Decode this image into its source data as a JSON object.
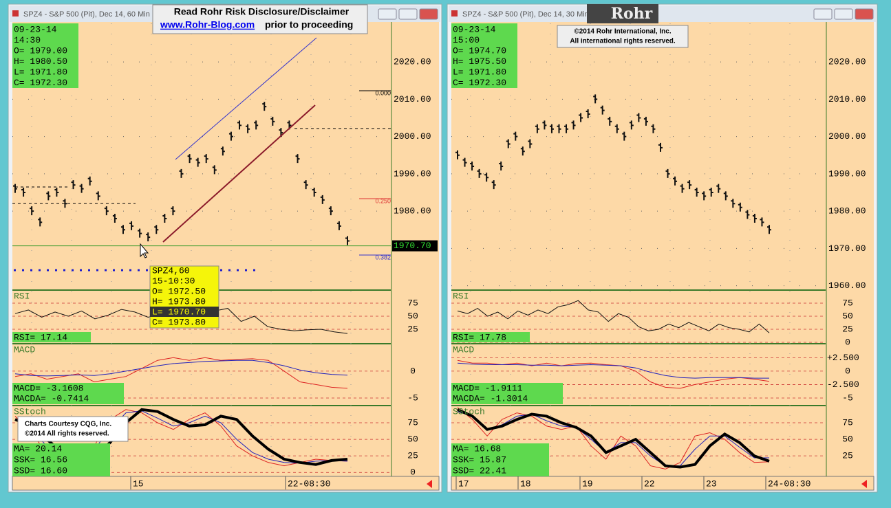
{
  "windows": [
    {
      "title": "SPZ4 - S&P 500 (Pit), Dec 14, 60 Min",
      "info": [
        "09-23-14",
        "14:30",
        "O= 1979.00",
        "H= 1980.50",
        "L= 1971.80",
        "C= 1972.30"
      ],
      "price": {
        "ylim": [
          1959.2,
          2030.7
        ],
        "yticks": [
          {
            "value": 2020,
            "label": "2020.00"
          },
          {
            "value": 2010,
            "label": "2010.00"
          },
          {
            "value": 2000,
            "label": "2000.00"
          },
          {
            "value": 1990,
            "label": "1990.00"
          },
          {
            "value": 1980,
            "label": "1980.00"
          }
        ],
        "last": {
          "value": 1970.7,
          "label": "1970.70"
        },
        "closes": [
          1986,
          1985,
          1980,
          1977,
          1984,
          1985,
          1982,
          1987,
          1986,
          1988,
          1984,
          1980,
          1978,
          1975,
          1976,
          1974,
          1973,
          1975,
          1978,
          1980,
          1990,
          1994,
          1993,
          1994,
          1991,
          1996,
          2000,
          2003,
          2002,
          2003,
          2008,
          2004,
          2001,
          2003,
          1994,
          1987,
          1985,
          1983,
          1980,
          1976,
          1972
        ]
      },
      "fib_labels": [
        "0.000",
        "0.250",
        "0.382"
      ],
      "rsi": {
        "name": "RSI",
        "readout": "RSI=   17.14",
        "ylim": [
          0,
          100
        ],
        "yticks": [
          75,
          50,
          25
        ],
        "values": [
          55,
          62,
          48,
          58,
          50,
          60,
          45,
          52,
          63,
          58,
          48,
          55,
          65,
          70,
          78,
          60,
          65,
          40,
          50,
          30,
          25,
          22,
          24,
          25,
          20,
          17
        ]
      },
      "macd": {
        "name": "MACD",
        "readout": [
          "MACD=     -3.1608",
          "MACDA=    -0.7414"
        ],
        "ylim": [
          -6.15,
          5.1
        ],
        "yticks": [
          0,
          -5
        ],
        "macd": [
          -1,
          -0.5,
          -1.5,
          -1,
          -0.5,
          -2,
          -1.5,
          -1,
          0.5,
          2,
          2.5,
          2,
          2.5,
          2,
          2.2,
          2.3,
          2,
          0,
          -2,
          -2.5,
          -3,
          -3.2
        ],
        "macda": [
          -0.5,
          -0.8,
          -0.9,
          -0.8,
          -0.7,
          -0.8,
          -0.5,
          0,
          0.5,
          1,
          1.4,
          1.6,
          1.8,
          1.9,
          2,
          2,
          1.6,
          1,
          0.2,
          -0.3,
          -0.6,
          -0.74
        ]
      },
      "stoch": {
        "name": "SStoch",
        "readout": [
          "MA=       20.14",
          "SSK=      16.56",
          "SSD=      16.60"
        ],
        "ylim": [
          -6,
          101
        ],
        "yticks": [
          75,
          50,
          25,
          0
        ],
        "ma": [
          80,
          70,
          50,
          30,
          22,
          25,
          45,
          75,
          95,
          92,
          80,
          70,
          72,
          85,
          80,
          55,
          35,
          20,
          15,
          12,
          18,
          20
        ],
        "ssk": [
          85,
          60,
          30,
          20,
          25,
          40,
          80,
          95,
          90,
          75,
          65,
          80,
          90,
          70,
          40,
          25,
          15,
          10,
          15,
          20,
          18,
          17
        ],
        "ssd": [
          80,
          65,
          40,
          25,
          25,
          35,
          65,
          90,
          93,
          82,
          70,
          75,
          85,
          75,
          50,
          30,
          20,
          15,
          14,
          17,
          18,
          17
        ]
      },
      "dates": [
        "15",
        "22-08:30"
      ]
    },
    {
      "title": "SPZ4 - S&P 500 (Pit), Dec 14, 30 Min",
      "info": [
        "09-23-14",
        "15:00",
        "O= 1974.70",
        "H= 1975.50",
        "L= 1971.80",
        "C= 1972.30"
      ],
      "price": {
        "ylim": [
          1959.2,
          2030.7
        ],
        "yticks": [
          {
            "value": 2020,
            "label": "2020.00"
          },
          {
            "value": 2010,
            "label": "2010.00"
          },
          {
            "value": 2000,
            "label": "2000.00"
          },
          {
            "value": 1990,
            "label": "1990.00"
          },
          {
            "value": 1980,
            "label": "1980.00"
          },
          {
            "value": 1970,
            "label": "1970.00"
          },
          {
            "value": 1960,
            "label": "1960.00"
          }
        ],
        "closes": [
          1995,
          1993,
          1992,
          1990,
          1989,
          1987,
          1992,
          1998,
          2000,
          1996,
          1998,
          2002,
          2003,
          2002,
          2002,
          2002,
          2003,
          2005,
          2006,
          2010,
          2007,
          2004,
          2002,
          2000,
          2003,
          2005,
          2004,
          2002,
          1997,
          1990,
          1988,
          1986,
          1987,
          1985,
          1984,
          1985,
          1986,
          1984,
          1982,
          1981,
          1979,
          1978,
          1977,
          1975
        ]
      },
      "rsi": {
        "name": "RSI",
        "readout": "RSI=    17.78",
        "ylim": [
          0,
          100
        ],
        "yticks": [
          75,
          50,
          25,
          0
        ],
        "values": [
          60,
          55,
          65,
          50,
          58,
          45,
          60,
          52,
          62,
          55,
          68,
          72,
          80,
          62,
          58,
          40,
          55,
          48,
          30,
          22,
          25,
          35,
          28,
          38,
          30,
          22,
          35,
          28,
          25,
          20,
          35,
          18
        ]
      },
      "macd": {
        "name": "MACD",
        "readout": [
          "MACD=     -1.9111",
          "MACDA=    -1.3014"
        ],
        "ylim": [
          -6.15,
          5.1
        ],
        "yticks": [
          {
            "value": 2.5,
            "label": "+2.500"
          },
          0,
          {
            "value": -2.5,
            "label": "-2.500"
          },
          -5
        ],
        "macd": [
          2,
          1.5,
          1.5,
          1.2,
          1.5,
          1,
          1.5,
          1,
          1.4,
          1.5,
          1.2,
          1,
          0,
          -2,
          -3,
          -3.2,
          -2.5,
          -2,
          -1.5,
          -1.2,
          -1.5,
          -1.9
        ],
        "macda": [
          1.5,
          1.3,
          1.2,
          1.2,
          1.2,
          1.1,
          1.1,
          1.0,
          1.1,
          1.2,
          1.1,
          1.0,
          0.6,
          -0.2,
          -0.8,
          -1.2,
          -1.3,
          -1.2,
          -1.2,
          -1.2,
          -1.3,
          -1.3
        ]
      },
      "stoch": {
        "name": "SStoch",
        "readout": [
          "MA=       16.68",
          "SSK=      15.87",
          "SSD=      22.41"
        ],
        "ylim": [
          -6,
          101
        ],
        "yticks": [
          75,
          50,
          25
        ],
        "ma": [
          95,
          85,
          65,
          70,
          80,
          88,
          85,
          75,
          68,
          55,
          30,
          40,
          50,
          30,
          10,
          8,
          12,
          40,
          58,
          45,
          25,
          17
        ],
        "ssk": [
          98,
          80,
          55,
          80,
          90,
          85,
          70,
          65,
          70,
          40,
          20,
          55,
          40,
          10,
          5,
          15,
          55,
          60,
          50,
          30,
          15,
          16
        ],
        "ssd": [
          92,
          85,
          65,
          72,
          85,
          88,
          78,
          70,
          68,
          50,
          30,
          45,
          45,
          25,
          10,
          10,
          35,
          55,
          55,
          38,
          22,
          22
        ]
      },
      "dates": [
        "17",
        "18",
        "19",
        "22",
        "23",
        "24-08:30"
      ]
    }
  ],
  "disclaimer": [
    "Read Rohr Risk Disclosure/Disclaimer",
    "www.Rohr-Blog.com",
    "prior to proceeding"
  ],
  "logo": "Rohr",
  "copyright": [
    "©2014  Rohr International, Inc.",
    "All international rights reserved."
  ],
  "courtesy": [
    "Charts Courtesy CQG, Inc.",
    "©2014 All rights reserved."
  ],
  "tooltip": [
    "SPZ4,60",
    "15-10:30",
    "O= 1972.50",
    "H= 1973.80",
    "L= 1970.70",
    "C= 1973.80"
  ]
}
